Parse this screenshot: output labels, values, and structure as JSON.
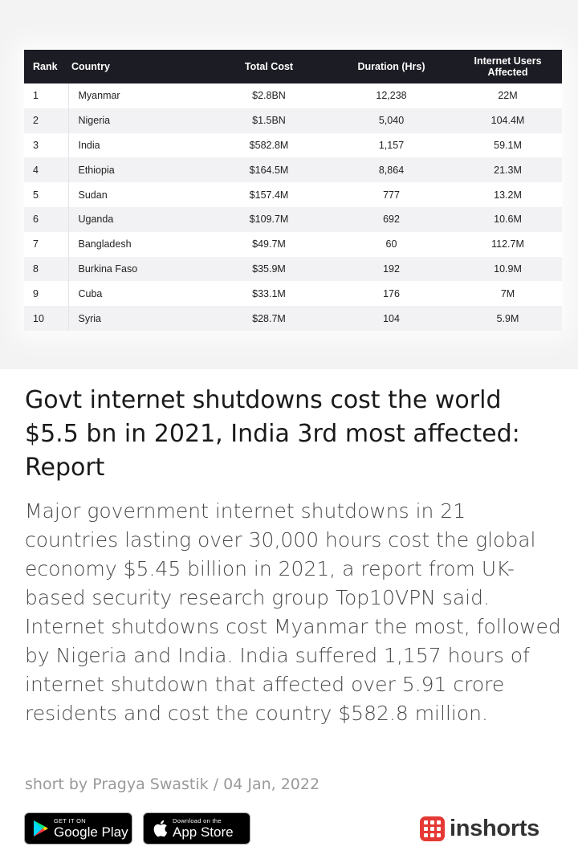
{
  "chart_data": {
    "type": "table",
    "columns": [
      "Rank",
      "Country",
      "Total Cost",
      "Duration (Hrs)",
      "Internet Users Affected"
    ],
    "rows": [
      [
        "1",
        "Myanmar",
        "$2.8BN",
        "12,238",
        "22M"
      ],
      [
        "2",
        "Nigeria",
        "$1.5BN",
        "5,040",
        "104.4M"
      ],
      [
        "3",
        "India",
        "$582.8M",
        "1,157",
        "59.1M"
      ],
      [
        "4",
        "Ethiopia",
        "$164.5M",
        "8,864",
        "21.3M"
      ],
      [
        "5",
        "Sudan",
        "$157.4M",
        "777",
        "13.2M"
      ],
      [
        "6",
        "Uganda",
        "$109.7M",
        "692",
        "10.6M"
      ],
      [
        "7",
        "Bangladesh",
        "$49.7M",
        "60",
        "112.7M"
      ],
      [
        "8",
        "Burkina Faso",
        "$35.9M",
        "192",
        "10.9M"
      ],
      [
        "9",
        "Cuba",
        "$33.1M",
        "176",
        "7M"
      ],
      [
        "10",
        "Syria",
        "$28.7M",
        "104",
        "5.9M"
      ]
    ]
  },
  "article": {
    "headline": "Govt internet shutdowns cost the world $5.5 bn in 2021, India 3rd most affected: Report",
    "body": "Major government internet shutdowns in 21 countries lasting over 30,000 hours cost the global economy $5.45 billion in 2021, a report from UK-based security research group Top10VPN said. Internet shutdowns cost Myanmar the most, followed by Nigeria and India. India suffered 1,157 hours of internet shutdown that affected over 5.91 crore residents and cost the country $582.8 million.",
    "byline": "short by Pragya Swastik / 04 Jan, 2022"
  },
  "footer": {
    "google_play": {
      "small": "GET IT ON",
      "big": "Google Play"
    },
    "app_store": {
      "small": "Download on the",
      "big": "App Store"
    },
    "brand_name": "inshorts",
    "brand_color": "#e53935"
  }
}
